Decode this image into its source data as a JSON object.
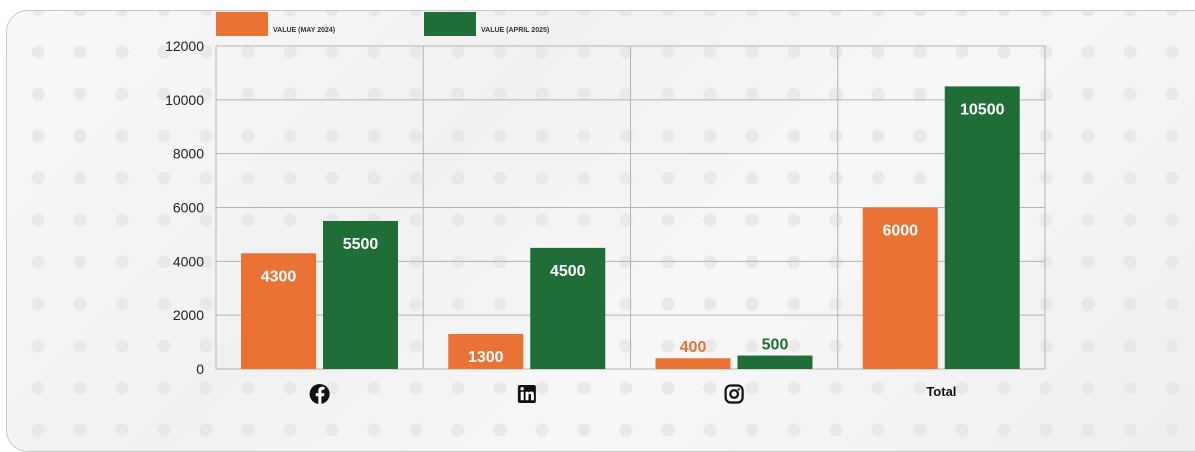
{
  "chart_data": {
    "type": "bar",
    "categories": [
      "facebook",
      "linkedin",
      "instagram",
      "Total"
    ],
    "category_display": [
      {
        "kind": "icon",
        "icon": "facebook-icon",
        "text": ""
      },
      {
        "kind": "icon",
        "icon": "linkedin-icon",
        "text": ""
      },
      {
        "kind": "icon",
        "icon": "instagram-icon",
        "text": ""
      },
      {
        "kind": "text",
        "icon": "",
        "text": "Total"
      }
    ],
    "series": [
      {
        "name": "VALUE (MAY 2024)",
        "color": "#ea7235",
        "values": [
          4300,
          1300,
          400,
          6000
        ],
        "label_inside": [
          true,
          true,
          false,
          true
        ]
      },
      {
        "name": "VALUE (APRIL 2025)",
        "color": "#1f6e37",
        "values": [
          5500,
          4500,
          500,
          10500
        ],
        "label_inside": [
          true,
          true,
          false,
          true
        ]
      }
    ],
    "ylim": [
      0,
      12000
    ],
    "yticks": [
      0,
      2000,
      4000,
      6000,
      8000,
      10000,
      12000
    ],
    "grid": true,
    "legend_position": "top-left",
    "title": "",
    "xlabel": "",
    "ylabel": ""
  }
}
